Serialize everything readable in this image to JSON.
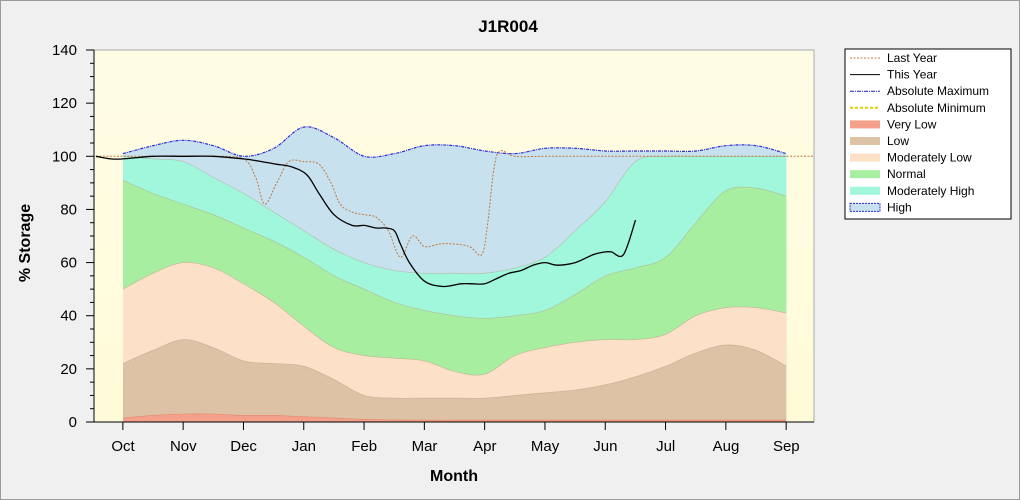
{
  "chart_data": {
    "type": "area",
    "title": "J1R004",
    "xlabel": "Month",
    "ylabel": "% Storage",
    "ylim": [
      0,
      140
    ],
    "yticks": [
      0,
      20,
      40,
      60,
      80,
      100,
      120,
      140
    ],
    "categories": [
      "Oct",
      "Nov",
      "Dec",
      "Jan",
      "Feb",
      "Mar",
      "Apr",
      "May",
      "Jun",
      "Jul",
      "Aug",
      "Sep"
    ],
    "legend_position": "right",
    "x": [
      0,
      0.5,
      1,
      1.5,
      2,
      2.5,
      3,
      3.5,
      4,
      4.5,
      5,
      5.5,
      6,
      6.5,
      7,
      7.5,
      8,
      8.5,
      9,
      9.5,
      10,
      10.5,
      11
    ],
    "bands": [
      {
        "name": "Very Low",
        "color": "#f4a08a",
        "lower": [
          0,
          0,
          0,
          0,
          0,
          0,
          0,
          0,
          0,
          0,
          0,
          0,
          0,
          0,
          0,
          0,
          0,
          0,
          0,
          0,
          0,
          0,
          0
        ],
        "upper": [
          1.5,
          2.5,
          3,
          3,
          2.5,
          2.5,
          2,
          1.5,
          1,
          0.8,
          0.7,
          0.7,
          0.7,
          0.7,
          0.7,
          0.7,
          0.7,
          0.7,
          0.7,
          0.7,
          0.7,
          0.7,
          0.7
        ]
      },
      {
        "name": "Low",
        "color": "#ddc2a6",
        "upper": [
          22,
          27,
          31,
          28,
          23,
          22,
          21,
          16,
          10,
          9,
          9,
          9,
          9,
          10,
          11,
          12,
          14,
          17,
          21,
          26,
          29,
          27,
          21
        ]
      },
      {
        "name": "Moderately Low",
        "color": "#fde0c8",
        "upper": [
          50,
          56,
          60,
          58,
          52,
          45,
          36,
          28,
          25,
          24,
          23,
          19,
          18,
          25,
          28,
          30,
          31,
          31,
          33,
          40,
          43,
          43,
          41
        ]
      },
      {
        "name": "Normal",
        "color": "#a8eea0",
        "upper": [
          91,
          86,
          82,
          78,
          73,
          68,
          62,
          55,
          50,
          45,
          42,
          40,
          39,
          40,
          42,
          48,
          55,
          58,
          62,
          75,
          87,
          88,
          85
        ]
      },
      {
        "name": "Moderately High",
        "color": "#a0f7dc",
        "upper": [
          100,
          99,
          98,
          92,
          86,
          79,
          72,
          65,
          60,
          57,
          56,
          56,
          56,
          58,
          62,
          72,
          83,
          98,
          100,
          100,
          100,
          100,
          100
        ]
      },
      {
        "name": "High",
        "color": "#c7e2ee",
        "upper": [
          101,
          104,
          106,
          104,
          100,
          103,
          111,
          107,
          100,
          101,
          104,
          104,
          102,
          101,
          103,
          103,
          102,
          102,
          102,
          102,
          104,
          104,
          101
        ]
      }
    ],
    "series": [
      {
        "name": "Last Year",
        "style": "dotted",
        "color": "#c07840",
        "x": [
          -0.45,
          0,
          0.5,
          1,
          1.5,
          2,
          2.2,
          2.35,
          2.55,
          2.75,
          3,
          3.25,
          3.45,
          3.6,
          3.8,
          4,
          4.2,
          4.4,
          4.6,
          4.8,
          5.0,
          5.25,
          5.5,
          5.75,
          5.95,
          6.05,
          6.15,
          6.25,
          6.5,
          7,
          8,
          9,
          10,
          11,
          11.45
        ],
        "y": [
          100,
          100,
          100,
          100,
          100,
          99,
          92,
          82,
          90,
          98,
          98,
          97,
          90,
          82,
          79,
          78,
          77,
          72,
          62,
          70,
          66,
          67,
          67,
          66,
          63,
          75,
          95,
          102,
          100,
          100,
          100,
          100,
          100,
          100,
          100
        ]
      },
      {
        "name": "This Year",
        "style": "solid",
        "color": "#000000",
        "x": [
          -0.45,
          -0.2,
          0,
          0.5,
          1,
          1.5,
          2,
          2.3,
          2.55,
          2.8,
          3.05,
          3.25,
          3.5,
          3.8,
          4.0,
          4.2,
          4.35,
          4.5,
          4.6,
          4.75,
          5.0,
          5.3,
          5.6,
          5.8,
          6.0,
          6.2,
          6.4,
          6.6,
          6.8,
          7.0,
          7.2,
          7.5,
          7.8,
          8.0,
          8.1,
          8.3,
          8.5
        ],
        "y": [
          100,
          99,
          99,
          100,
          100,
          100,
          99,
          98,
          97,
          96,
          93,
          86,
          78,
          74,
          74,
          73,
          73,
          72,
          67,
          60,
          53,
          51,
          52,
          52,
          52,
          54,
          56,
          57,
          59,
          60,
          59,
          60,
          63,
          64,
          64,
          63,
          76
        ]
      }
    ],
    "limit_series": [
      {
        "name": "Absolute Maximum",
        "style": "dashdot",
        "color": "#1a1ad0"
      },
      {
        "name": "Absolute Minimum",
        "style": "dashed",
        "color": "#e0d000"
      }
    ],
    "legend": [
      "Last Year",
      "This Year",
      "Absolute Maximum",
      "Absolute Minimum",
      "Very Low",
      "Low",
      "Moderately Low",
      "Normal",
      "Moderately High",
      "High"
    ]
  }
}
